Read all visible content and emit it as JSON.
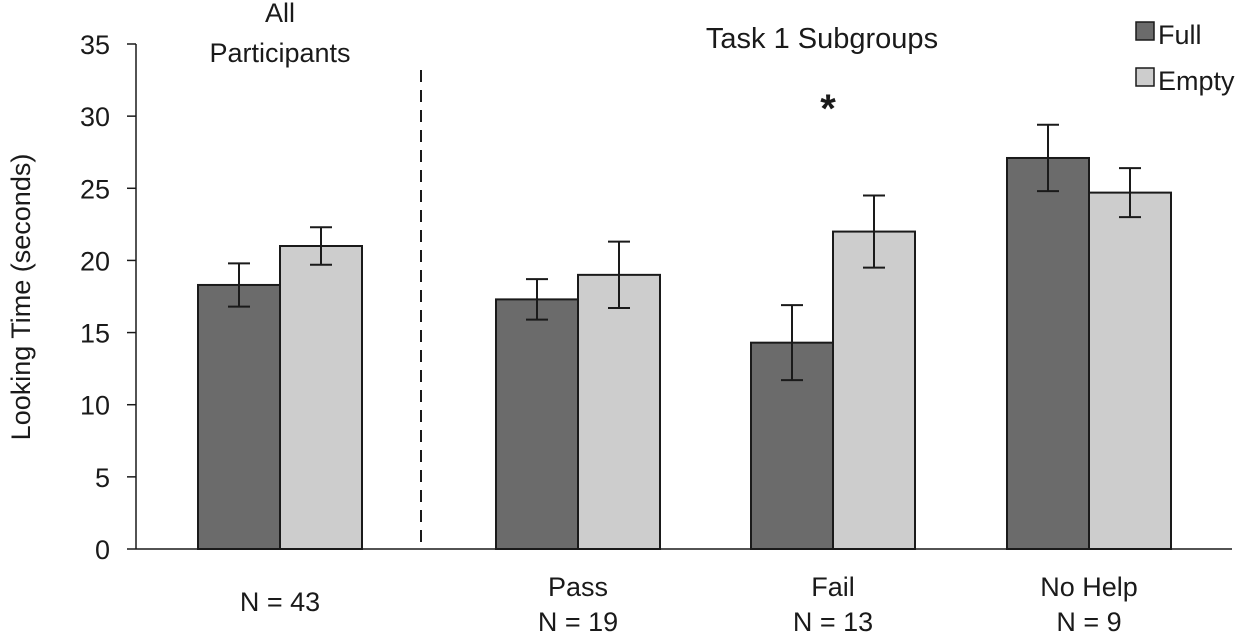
{
  "chart_data": {
    "type": "bar",
    "ylabel": "Looking Time (seconds)",
    "ylim": [
      0,
      35
    ],
    "yticks": [
      0,
      5,
      10,
      15,
      20,
      25,
      30,
      35
    ],
    "series": [
      {
        "name": "Full",
        "color": "#6b6b6b"
      },
      {
        "name": "Empty",
        "color": "#cdcdcd"
      }
    ],
    "groups": [
      {
        "top_label": [
          "All",
          "Participants"
        ],
        "label": "",
        "n_label": "N = 43",
        "values": [
          18.3,
          21.0
        ],
        "errors": [
          1.5,
          1.3
        ]
      },
      {
        "label": "Pass",
        "n_label": "N = 19",
        "values": [
          17.3,
          19.0
        ],
        "errors": [
          1.4,
          2.3
        ]
      },
      {
        "label": "Fail",
        "n_label": "N = 13",
        "values": [
          14.3,
          22.0
        ],
        "errors": [
          2.6,
          2.5
        ]
      },
      {
        "label": "No Help",
        "n_label": "N = 9",
        "values": [
          27.1,
          24.7
        ],
        "errors": [
          2.3,
          1.7
        ]
      }
    ],
    "section_label": "Task 1 Subgroups",
    "annotation": "*",
    "annotation_group": 2,
    "legend_position": "top-right",
    "grid": false
  }
}
